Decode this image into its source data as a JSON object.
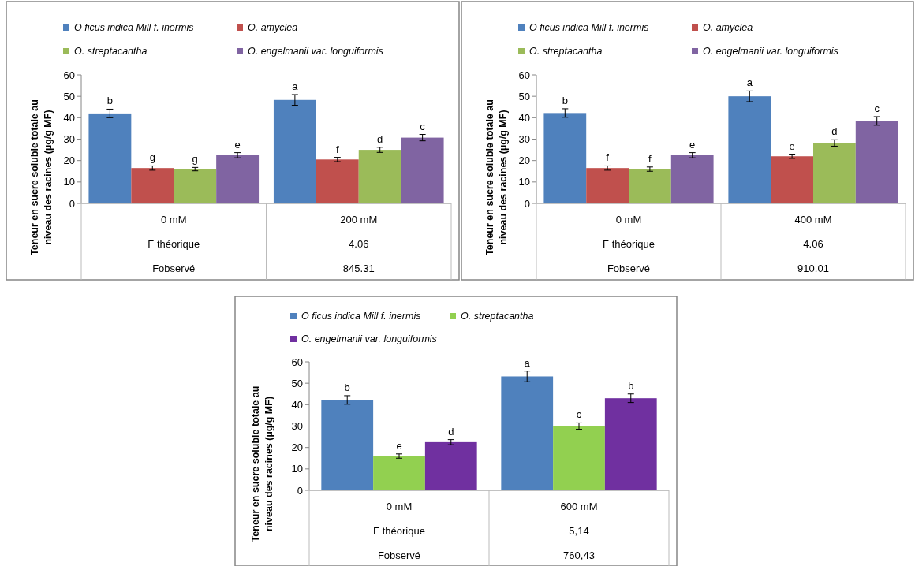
{
  "chart_data": [
    {
      "type": "bar",
      "ylabel": "Teneur en sucre soluble totale au\nniveau des racines (µg/g MF)",
      "categories": [
        "0 mM",
        "200 mM"
      ],
      "ylim": [
        0,
        60
      ],
      "yticks": [
        0,
        10,
        20,
        30,
        40,
        50,
        60
      ],
      "legend": "top",
      "grid": false,
      "series": [
        {
          "name": "O ficus indica Mill f. inermis",
          "color": "#4f81bd",
          "values": [
            42,
            48.3
          ],
          "errors": [
            2,
            2.5
          ],
          "value_labels": [
            "b",
            "a"
          ]
        },
        {
          "name": "O. amyclea",
          "color": "#c0504d",
          "values": [
            16.5,
            20.5
          ],
          "errors": [
            1,
            1
          ],
          "value_labels": [
            "g",
            "f"
          ]
        },
        {
          "name": "O. streptacantha",
          "color": "#9bbb59",
          "values": [
            16,
            25
          ],
          "errors": [
            0.8,
            1.2
          ],
          "value_labels": [
            "g",
            "d"
          ]
        },
        {
          "name": "O. engelmanii var. longuiformis",
          "color": "#8064a2",
          "values": [
            22.5,
            30.7
          ],
          "errors": [
            1.2,
            1.5
          ],
          "value_labels": [
            "e",
            "c"
          ]
        }
      ],
      "annotations": [
        "F théorique",
        "4.06",
        "Fobservé",
        "845.31"
      ]
    },
    {
      "type": "bar",
      "ylabel": "Teneur en sucre soluble totale au\nniveau des racines (µg/g MF)",
      "categories": [
        "0 mM",
        "400 mM"
      ],
      "ylim": [
        0,
        60
      ],
      "yticks": [
        0,
        10,
        20,
        30,
        40,
        50,
        60
      ],
      "legend": "top",
      "grid": false,
      "series": [
        {
          "name": "O ficus indica Mill f. inermis",
          "color": "#4f81bd",
          "values": [
            42.2,
            50
          ],
          "errors": [
            2,
            2.5
          ],
          "value_labels": [
            "b",
            "a"
          ]
        },
        {
          "name": "O. amyclea",
          "color": "#c0504d",
          "values": [
            16.5,
            22
          ],
          "errors": [
            1,
            1
          ],
          "value_labels": [
            "f",
            "e"
          ]
        },
        {
          "name": "O. streptacantha",
          "color": "#9bbb59",
          "values": [
            16,
            28.2
          ],
          "errors": [
            1,
            1.5
          ],
          "value_labels": [
            "f",
            "d"
          ]
        },
        {
          "name": "O. engelmanii var. longuiformis",
          "color": "#8064a2",
          "values": [
            22.5,
            38.5
          ],
          "errors": [
            1.2,
            2
          ],
          "value_labels": [
            "e",
            "c"
          ]
        }
      ],
      "annotations": [
        "F théorique",
        "4.06",
        "Fobservé",
        "910.01"
      ]
    },
    {
      "type": "bar",
      "ylabel": "Teneur en sucre soluble totale au\nniveau des racines (µg/g MF)",
      "categories": [
        "0 mM",
        "600 mM"
      ],
      "ylim": [
        0,
        60
      ],
      "yticks": [
        0,
        10,
        20,
        30,
        40,
        50,
        60
      ],
      "legend": "top",
      "grid": false,
      "series": [
        {
          "name": "O ficus indica Mill f. inermis",
          "color": "#4f81bd",
          "values": [
            42.2,
            53.2
          ],
          "errors": [
            2,
            2.5
          ],
          "value_labels": [
            "b",
            "a"
          ]
        },
        {
          "name": "O. streptacantha",
          "color": "#92d050",
          "values": [
            16,
            30
          ],
          "errors": [
            1,
            1.5
          ],
          "value_labels": [
            "e",
            "c"
          ]
        },
        {
          "name": "O. engelmanii var. longuiformis",
          "color": "#7030a0",
          "values": [
            22.5,
            43
          ],
          "errors": [
            1.2,
            2
          ],
          "value_labels": [
            "d",
            "b"
          ]
        }
      ],
      "annotations": [
        "F théorique",
        "5,14",
        "Fobservé",
        "760,43"
      ]
    }
  ]
}
